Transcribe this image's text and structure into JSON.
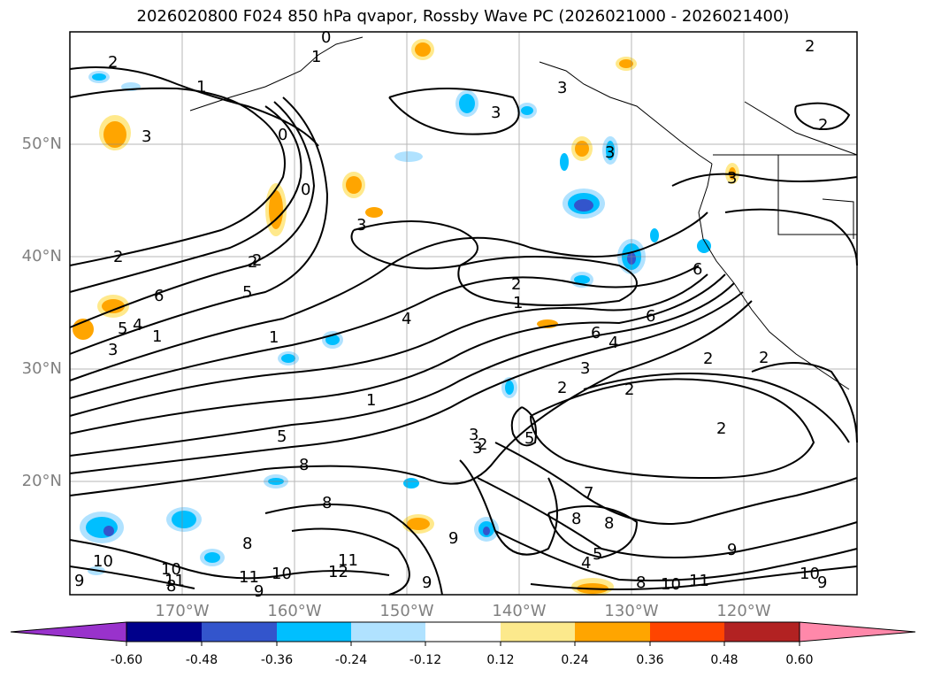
{
  "title": "2026020800 F024 850 hPa qvapor, Rossby Wave PC (2026021000 - 2026021400)",
  "map": {
    "lat_labels": [
      "50°N",
      "40°N",
      "30°N",
      "20°N"
    ],
    "lon_labels": [
      "170°W",
      "160°W",
      "150°W",
      "140°W",
      "130°W",
      "120°W"
    ],
    "contour_labels": [
      "2",
      "1",
      "0",
      "2",
      "3",
      "3",
      "6",
      "1",
      "0",
      "3",
      "2",
      "3",
      "0",
      "3",
      "2",
      "3",
      "2",
      "2",
      "1",
      "6",
      "5",
      "1",
      "4",
      "1",
      "6",
      "4",
      "5",
      "4",
      "3",
      "3",
      "1",
      "2",
      "2",
      "2",
      "6",
      "3",
      "2",
      "2",
      "2",
      "2",
      "3",
      "5",
      "8",
      "8",
      "5",
      "8",
      "9",
      "7",
      "8",
      "8",
      "8",
      "4",
      "9",
      "5",
      "9",
      "10",
      "10",
      "10",
      "11",
      "11",
      "12",
      "11",
      "9",
      "9",
      "9",
      "10",
      "10",
      "11",
      "8"
    ]
  },
  "colorbar": {
    "tick_labels": [
      "-0.60",
      "-0.48",
      "-0.36",
      "-0.24",
      "-0.12",
      "0.12",
      "0.24",
      "0.36",
      "0.48",
      "0.60"
    ],
    "colors": [
      "#9932cc",
      "#00008b",
      "#3355cc",
      "#00bfff",
      "#b0e2ff",
      "#ffffff",
      "#fce98c",
      "#ffa500",
      "#ff4500",
      "#b22222",
      "#ff88aa"
    ]
  }
}
